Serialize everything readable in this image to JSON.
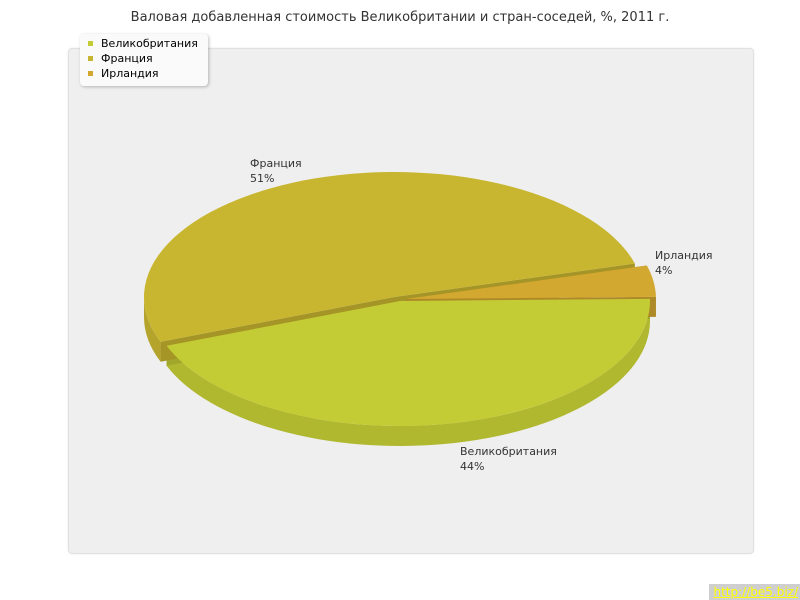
{
  "chart_data": {
    "type": "pie",
    "title": "Валовая добавленная стоимость Великобритании и стран-соседей, %, 2011 г.",
    "categories": [
      "Великобритания",
      "Франция",
      "Ирландия"
    ],
    "values": [
      44,
      51,
      4
    ],
    "value_labels": [
      "44%",
      "51%",
      "4%"
    ],
    "colors": [
      "#c4cc35",
      "#c9b630",
      "#d3a830"
    ],
    "legend_placement": "top-left",
    "three_d": true
  },
  "watermark": {
    "text": "http://be5.biz/"
  }
}
